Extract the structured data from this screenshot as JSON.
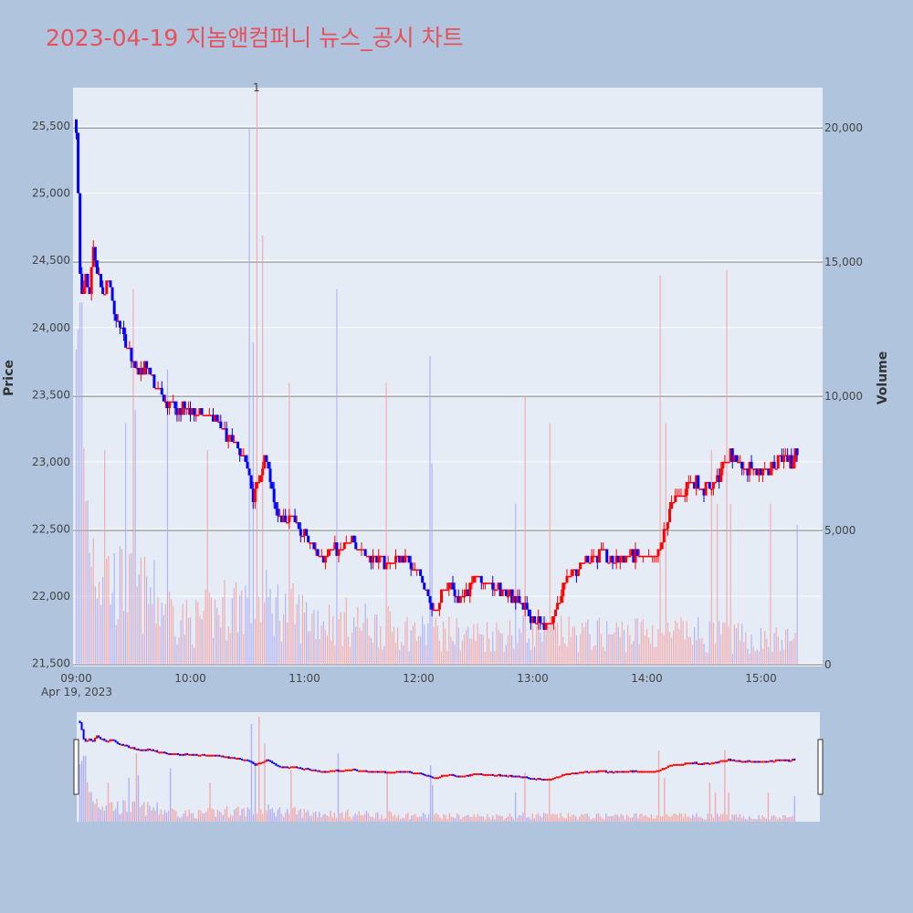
{
  "title": "2023-04-19 지놈앤컴퍼니 뉴스_공시 차트",
  "colors": {
    "page_bg": "#b0c4de",
    "plot_bg": "#e5ecf6",
    "title": "#e8505b",
    "up": "#ff0000",
    "down": "#0000ff",
    "volume_up": "#f4a0a0",
    "volume_down": "#a8a8f4",
    "gridline": "#ffffff",
    "volume_gridline": "#888888"
  },
  "chart_data": {
    "type": "candlestick",
    "title": "2023-04-19 지놈앤컴퍼니 뉴스_공시 차트",
    "ylabel": "Price",
    "y2label": "Volume",
    "x_ticks": [
      "09:00",
      "10:00",
      "11:00",
      "12:00",
      "13:00",
      "14:00",
      "15:00"
    ],
    "x_date_label": "Apr 19, 2023",
    "y_ticks": [
      "21,500",
      "22,000",
      "22,500",
      "23,000",
      "23,500",
      "24,000",
      "24,500",
      "25,000",
      "25,500"
    ],
    "y2_ticks": [
      "0",
      "5,000",
      "10,000",
      "15,000",
      "20,000"
    ],
    "ylim": [
      21500,
      25750
    ],
    "y2lim": [
      0,
      20000
    ],
    "annotation": "1",
    "price_path": [
      [
        "09:00",
        25500
      ],
      [
        "09:01",
        25000
      ],
      [
        "09:02",
        24400
      ],
      [
        "09:03",
        24200
      ],
      [
        "09:05",
        24350
      ],
      [
        "09:07",
        24200
      ],
      [
        "09:09",
        24600
      ],
      [
        "09:11",
        24400
      ],
      [
        "09:14",
        24250
      ],
      [
        "09:17",
        24350
      ],
      [
        "09:20",
        24100
      ],
      [
        "09:24",
        23950
      ],
      [
        "09:28",
        23800
      ],
      [
        "09:32",
        23700
      ],
      [
        "09:37",
        23700
      ],
      [
        "09:42",
        23550
      ],
      [
        "09:47",
        23450
      ],
      [
        "09:52",
        23380
      ],
      [
        "09:58",
        23400
      ],
      [
        "10:04",
        23350
      ],
      [
        "10:10",
        23350
      ],
      [
        "10:16",
        23250
      ],
      [
        "10:22",
        23150
      ],
      [
        "10:27",
        23050
      ],
      [
        "10:30",
        22950
      ],
      [
        "10:33",
        22700
      ],
      [
        "10:36",
        22850
      ],
      [
        "10:39",
        23050
      ],
      [
        "10:42",
        22850
      ],
      [
        "10:45",
        22650
      ],
      [
        "10:48",
        22550
      ],
      [
        "10:52",
        22600
      ],
      [
        "10:56",
        22500
      ],
      [
        "11:00",
        22450
      ],
      [
        "11:05",
        22350
      ],
      [
        "11:10",
        22300
      ],
      [
        "11:15",
        22350
      ],
      [
        "11:20",
        22350
      ],
      [
        "11:25",
        22400
      ],
      [
        "11:30",
        22350
      ],
      [
        "11:35",
        22300
      ],
      [
        "11:40",
        22250
      ],
      [
        "11:45",
        22250
      ],
      [
        "11:50",
        22300
      ],
      [
        "11:55",
        22250
      ],
      [
        "12:00",
        22200
      ],
      [
        "12:04",
        22050
      ],
      [
        "12:08",
        21850
      ],
      [
        "12:12",
        22050
      ],
      [
        "12:16",
        22100
      ],
      [
        "12:20",
        22000
      ],
      [
        "12:24",
        22000
      ],
      [
        "12:28",
        22100
      ],
      [
        "12:32",
        22150
      ],
      [
        "12:36",
        22100
      ],
      [
        "12:40",
        22050
      ],
      [
        "12:45",
        22050
      ],
      [
        "12:50",
        22000
      ],
      [
        "12:54",
        21950
      ],
      [
        "12:58",
        21850
      ],
      [
        "13:02",
        21800
      ],
      [
        "13:06",
        21780
      ],
      [
        "13:10",
        21800
      ],
      [
        "13:14",
        22000
      ],
      [
        "13:18",
        22150
      ],
      [
        "13:22",
        22200
      ],
      [
        "13:26",
        22250
      ],
      [
        "13:30",
        22300
      ],
      [
        "13:34",
        22300
      ],
      [
        "13:38",
        22300
      ],
      [
        "13:42",
        22250
      ],
      [
        "13:46",
        22300
      ],
      [
        "13:50",
        22300
      ],
      [
        "13:54",
        22300
      ],
      [
        "13:58",
        22300
      ],
      [
        "14:02",
        22250
      ],
      [
        "14:06",
        22300
      ],
      [
        "14:09",
        22450
      ],
      [
        "14:12",
        22650
      ],
      [
        "14:15",
        22700
      ],
      [
        "14:18",
        22750
      ],
      [
        "14:22",
        22850
      ],
      [
        "14:26",
        22850
      ],
      [
        "14:30",
        22800
      ],
      [
        "14:34",
        22850
      ],
      [
        "14:38",
        22900
      ],
      [
        "14:41",
        23000
      ],
      [
        "14:44",
        23050
      ],
      [
        "14:48",
        23000
      ],
      [
        "14:52",
        22950
      ],
      [
        "14:56",
        22950
      ],
      [
        "15:00",
        22950
      ],
      [
        "15:04",
        22950
      ],
      [
        "15:08",
        23000
      ],
      [
        "15:12",
        23050
      ],
      [
        "15:16",
        23000
      ],
      [
        "15:19",
        23100
      ]
    ],
    "volume_path": [
      [
        "09:00",
        18000
      ],
      [
        "09:05",
        6000
      ],
      [
        "09:10",
        4000
      ],
      [
        "09:20",
        3000
      ],
      [
        "09:40",
        2500
      ],
      [
        "10:00",
        1500
      ],
      [
        "10:30",
        2500
      ],
      [
        "11:00",
        1800
      ],
      [
        "11:30",
        1500
      ],
      [
        "12:00",
        1200
      ],
      [
        "12:30",
        1100
      ],
      [
        "13:00",
        1200
      ],
      [
        "13:30",
        1100
      ],
      [
        "14:00",
        1200
      ],
      [
        "14:30",
        1100
      ],
      [
        "15:00",
        900
      ],
      [
        "15:20",
        900
      ]
    ],
    "volume_spikes": [
      [
        "09:01",
        12500
      ],
      [
        "09:02",
        13500
      ],
      [
        "09:15",
        8000
      ],
      [
        "09:26",
        9000
      ],
      [
        "09:30",
        14000
      ],
      [
        "09:31",
        9500
      ],
      [
        "09:48",
        11000
      ],
      [
        "10:09",
        8000
      ],
      [
        "10:31",
        20000
      ],
      [
        "10:33",
        12000
      ],
      [
        "10:35",
        21500
      ],
      [
        "10:38",
        16000
      ],
      [
        "10:52",
        10500
      ],
      [
        "11:17",
        14000
      ],
      [
        "11:43",
        10500
      ],
      [
        "12:06",
        11500
      ],
      [
        "12:07",
        7500
      ],
      [
        "12:51",
        6000
      ],
      [
        "12:56",
        10000
      ],
      [
        "13:09",
        9000
      ],
      [
        "14:07",
        14500
      ],
      [
        "14:10",
        9000
      ],
      [
        "14:34",
        8000
      ],
      [
        "14:37",
        6000
      ],
      [
        "14:42",
        14700
      ],
      [
        "14:44",
        6000
      ],
      [
        "15:05",
        6000
      ],
      [
        "15:19",
        5200
      ],
      [
        "15:21",
        10500
      ]
    ]
  }
}
